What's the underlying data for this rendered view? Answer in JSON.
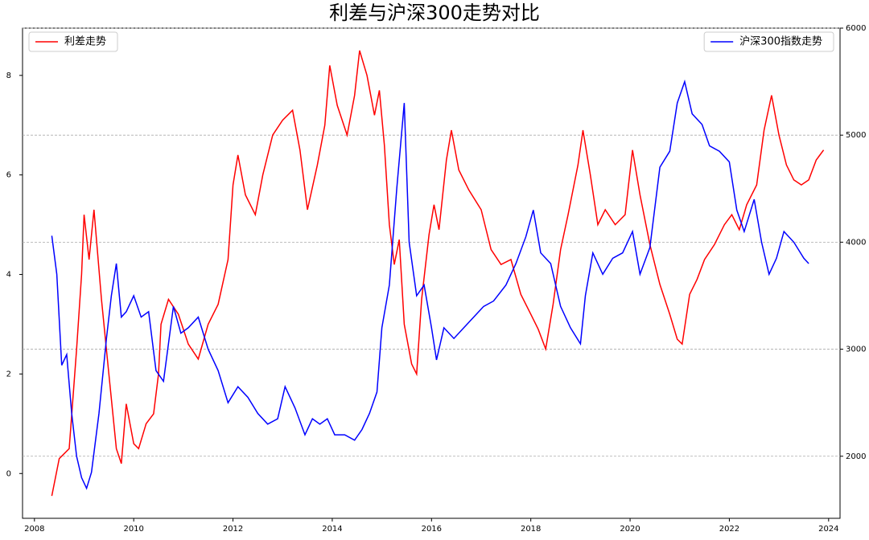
{
  "chart_data": {
    "type": "line",
    "title": "利差与沪深300走势对比",
    "xlim": [
      2007.76,
      2024.23
    ],
    "xticks": [
      2008,
      2010,
      2012,
      2014,
      2016,
      2018,
      2020,
      2022,
      2024
    ],
    "ylim": [
      -0.9,
      8.95
    ],
    "yticks": [
      0,
      2,
      4,
      6,
      8
    ],
    "y2lim": [
      1420,
      6000
    ],
    "y2ticks": [
      2000,
      3000,
      4000,
      5000,
      6000
    ],
    "grid": "y2",
    "series": [
      {
        "name": "利差走势",
        "color": "#ff0000",
        "legend_loc": "upper left",
        "x": [
          2008.35,
          2008.5,
          2008.7,
          2008.85,
          2008.95,
          2009.0,
          2009.1,
          2009.2,
          2009.35,
          2009.5,
          2009.65,
          2009.75,
          2009.85,
          2010.0,
          2010.1,
          2010.25,
          2010.4,
          2010.5,
          2010.55,
          2010.7,
          2010.9,
          2011.1,
          2011.3,
          2011.5,
          2011.7,
          2011.9,
          2012.0,
          2012.1,
          2012.25,
          2012.45,
          2012.6,
          2012.8,
          2013.0,
          2013.2,
          2013.35,
          2013.5,
          2013.7,
          2013.85,
          2013.95,
          2014.1,
          2014.3,
          2014.45,
          2014.55,
          2014.7,
          2014.85,
          2014.95,
          2015.05,
          2015.15,
          2015.25,
          2015.35,
          2015.45,
          2015.6,
          2015.7,
          2015.8,
          2015.95,
          2016.05,
          2016.15,
          2016.3,
          2016.4,
          2016.55,
          2016.75,
          2017.0,
          2017.2,
          2017.4,
          2017.6,
          2017.8,
          2018.0,
          2018.15,
          2018.3,
          2018.45,
          2018.6,
          2018.75,
          2018.95,
          2019.05,
          2019.2,
          2019.35,
          2019.5,
          2019.7,
          2019.9,
          2020.05,
          2020.2,
          2020.4,
          2020.6,
          2020.8,
          2020.95,
          2021.05,
          2021.2,
          2021.35,
          2021.5,
          2021.7,
          2021.9,
          2022.05,
          2022.2,
          2022.35,
          2022.55,
          2022.7,
          2022.85,
          2023.0,
          2023.15,
          2023.3,
          2023.45,
          2023.6,
          2023.75,
          2023.9
        ],
        "values": [
          -0.45,
          0.3,
          0.5,
          2.5,
          4.0,
          5.2,
          4.3,
          5.3,
          3.5,
          2.0,
          0.5,
          0.2,
          1.4,
          0.6,
          0.5,
          1.0,
          1.2,
          2.0,
          3.0,
          3.5,
          3.2,
          2.6,
          2.3,
          3.0,
          3.4,
          4.3,
          5.8,
          6.4,
          5.6,
          5.2,
          6.0,
          6.8,
          7.1,
          7.3,
          6.5,
          5.3,
          6.2,
          7.0,
          8.2,
          7.4,
          6.8,
          7.6,
          8.5,
          8.0,
          7.2,
          7.7,
          6.6,
          5.0,
          4.2,
          4.7,
          3.0,
          2.2,
          2.0,
          3.5,
          4.8,
          5.4,
          4.9,
          6.3,
          6.9,
          6.1,
          5.7,
          5.3,
          4.5,
          4.2,
          4.3,
          3.6,
          3.2,
          2.9,
          2.5,
          3.4,
          4.5,
          5.2,
          6.2,
          6.9,
          6.0,
          5.0,
          5.3,
          5.0,
          5.2,
          6.5,
          5.6,
          4.6,
          3.8,
          3.2,
          2.7,
          2.6,
          3.6,
          3.9,
          4.3,
          4.6,
          5.0,
          5.2,
          4.9,
          5.4,
          5.8,
          6.9,
          7.6,
          6.8,
          6.2,
          5.9,
          5.8,
          5.9,
          6.3,
          6.5
        ]
      },
      {
        "name": "沪深300指数走势",
        "color": "#0000ff",
        "axis": "y2",
        "legend_loc": "upper right",
        "x": [
          2008.35,
          2008.45,
          2008.55,
          2008.65,
          2008.75,
          2008.85,
          2008.95,
          2009.05,
          2009.15,
          2009.3,
          2009.45,
          2009.55,
          2009.65,
          2009.75,
          2009.85,
          2010.0,
          2010.15,
          2010.3,
          2010.45,
          2010.6,
          2010.8,
          2010.95,
          2011.1,
          2011.3,
          2011.5,
          2011.7,
          2011.9,
          2012.1,
          2012.3,
          2012.5,
          2012.7,
          2012.9,
          2013.05,
          2013.25,
          2013.45,
          2013.6,
          2013.75,
          2013.9,
          2014.05,
          2014.25,
          2014.45,
          2014.6,
          2014.75,
          2014.9,
          2015.0,
          2015.15,
          2015.3,
          2015.45,
          2015.55,
          2015.7,
          2015.85,
          2016.0,
          2016.1,
          2016.25,
          2016.45,
          2016.65,
          2016.85,
          2017.05,
          2017.25,
          2017.5,
          2017.7,
          2017.9,
          2018.05,
          2018.2,
          2018.4,
          2018.6,
          2018.8,
          2019.0,
          2019.1,
          2019.25,
          2019.45,
          2019.65,
          2019.85,
          2020.05,
          2020.2,
          2020.4,
          2020.6,
          2020.8,
          2020.95,
          2021.1,
          2021.25,
          2021.45,
          2021.6,
          2021.8,
          2022.0,
          2022.15,
          2022.3,
          2022.5,
          2022.65,
          2022.8,
          2022.95,
          2023.1,
          2023.3,
          2023.5,
          2023.6
        ],
        "values": [
          4060,
          3700,
          2850,
          2950,
          2400,
          2000,
          1800,
          1700,
          1850,
          2400,
          3100,
          3500,
          3800,
          3300,
          3350,
          3500,
          3300,
          3350,
          2800,
          2700,
          3400,
          3150,
          3200,
          3300,
          3000,
          2800,
          2500,
          2650,
          2550,
          2400,
          2300,
          2350,
          2650,
          2450,
          2200,
          2350,
          2300,
          2350,
          2200,
          2200,
          2150,
          2250,
          2400,
          2600,
          3200,
          3600,
          4500,
          5300,
          4000,
          3500,
          3600,
          3200,
          2900,
          3200,
          3100,
          3200,
          3300,
          3400,
          3450,
          3600,
          3800,
          4050,
          4300,
          3900,
          3800,
          3400,
          3200,
          3050,
          3500,
          3900,
          3700,
          3850,
          3900,
          4100,
          3700,
          3950,
          4700,
          4850,
          5300,
          5500,
          5200,
          5100,
          4900,
          4850,
          4750,
          4300,
          4100,
          4400,
          4000,
          3700,
          3850,
          4100,
          4000,
          3850,
          3800
        ]
      }
    ]
  }
}
